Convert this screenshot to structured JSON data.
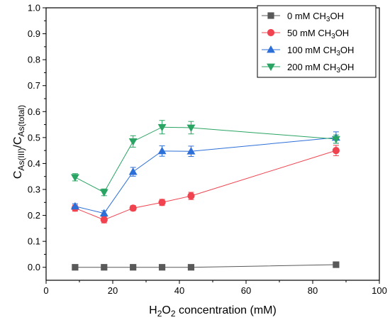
{
  "chart_data": {
    "type": "line",
    "title": "",
    "xlabel": {
      "main": "H",
      "sub1": "2",
      "mid": "O",
      "sub2": "2",
      "rest": " concentration (mM)"
    },
    "ylabel": {
      "c1": "C",
      "sub1": "As(III)",
      "slash": "/C",
      "sub2": "As(total)"
    },
    "xlim": [
      0,
      100
    ],
    "ylim": [
      -0.05,
      1.0
    ],
    "x_ticks": [
      0,
      20,
      40,
      60,
      80,
      100
    ],
    "y_ticks": [
      0.0,
      0.1,
      0.2,
      0.3,
      0.4,
      0.5,
      0.6,
      0.7,
      0.8,
      0.9,
      1.0
    ],
    "x_tick_labels": [
      "0",
      "20",
      "40",
      "60",
      "80",
      "100"
    ],
    "y_tick_labels": [
      "0.0",
      "0.1",
      "0.2",
      "0.3",
      "0.4",
      "0.5",
      "0.6",
      "0.7",
      "0.8",
      "0.9",
      "1.0"
    ],
    "grid": false,
    "legend_position": "top-right",
    "x": [
      8.7,
      17.4,
      26.1,
      34.8,
      43.5,
      87.0
    ],
    "series": [
      {
        "name": "0 mM CH3OH",
        "label_parts": [
          "0 mM CH",
          "3",
          "OH"
        ],
        "color": "#595959",
        "marker": "square",
        "values": [
          0.0,
          0.0,
          0.0,
          0.0,
          0.0,
          0.01
        ],
        "errors": [
          0.003,
          0.003,
          0.003,
          0.003,
          0.003,
          0.004
        ]
      },
      {
        "name": "50 mM CH3OH",
        "label_parts": [
          "50 mM CH",
          "3",
          "OH"
        ],
        "color": "#f0434f",
        "marker": "circle",
        "values": [
          0.228,
          0.183,
          0.228,
          0.25,
          0.275,
          0.45
        ],
        "errors": [
          0.012,
          0.012,
          0.01,
          0.012,
          0.014,
          0.02
        ]
      },
      {
        "name": "100 mM CH3OH",
        "label_parts": [
          "100 mM CH",
          "3",
          "OH"
        ],
        "color": "#2c6fd8",
        "marker": "triangle-up",
        "values": [
          0.235,
          0.208,
          0.368,
          0.448,
          0.447,
          0.5
        ],
        "errors": [
          0.01,
          0.01,
          0.017,
          0.02,
          0.02,
          0.022
        ]
      },
      {
        "name": "200 mM CH3OH",
        "label_parts": [
          "200 mM CH",
          "3",
          "OH"
        ],
        "color": "#29a463",
        "marker": "triangle-down",
        "values": [
          0.347,
          0.289,
          0.485,
          0.54,
          0.538,
          0.494
        ],
        "errors": [
          0.014,
          0.013,
          0.022,
          0.026,
          0.024,
          0.016
        ]
      }
    ]
  }
}
